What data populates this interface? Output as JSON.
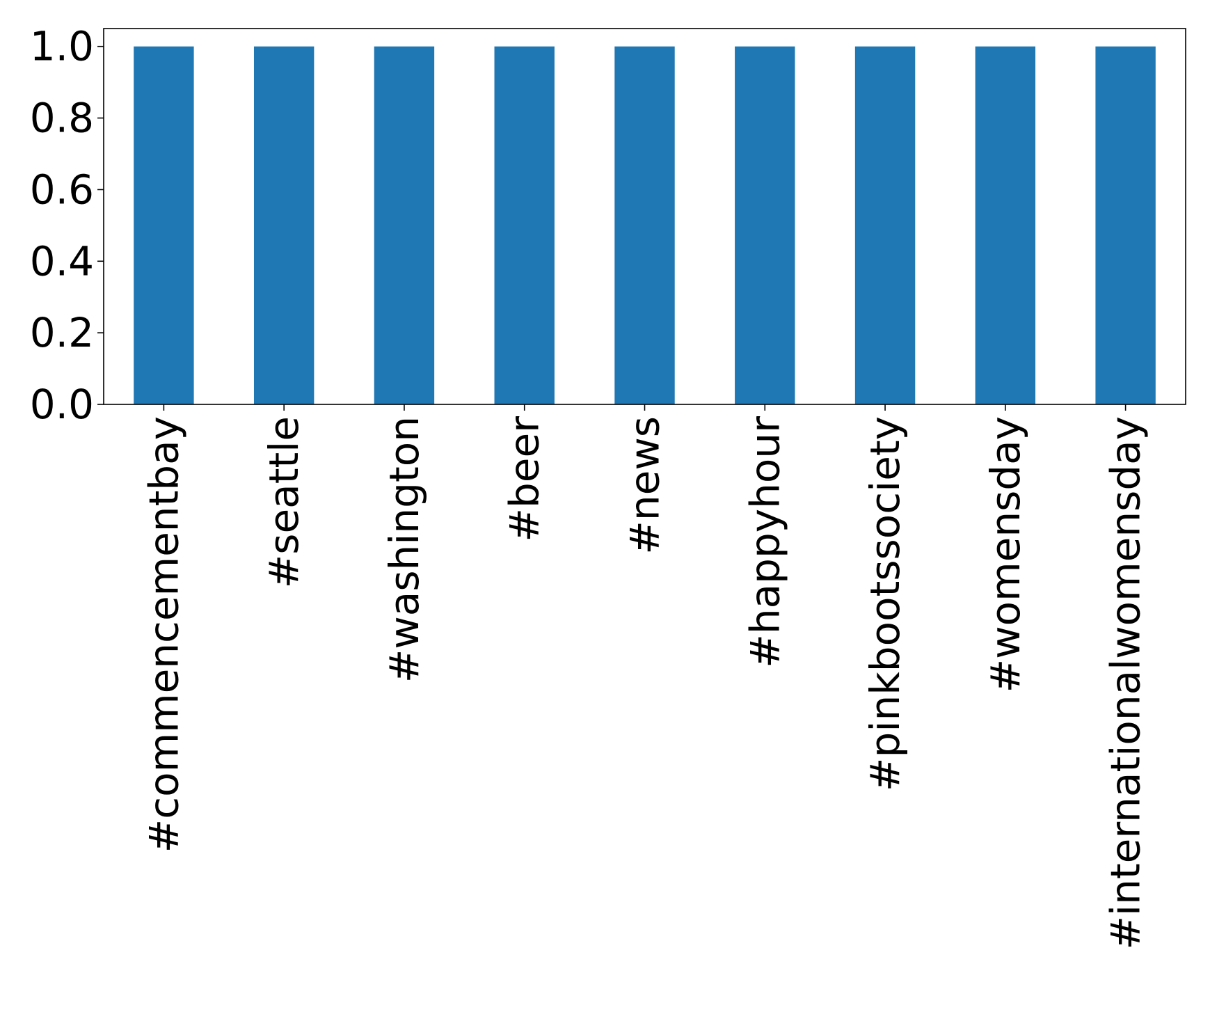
{
  "chart_data": {
    "type": "bar",
    "title": "",
    "xlabel": "",
    "ylabel": "",
    "categories": [
      "#commencementbay",
      "#seattle",
      "#washington",
      "#beer",
      "#news",
      "#happyhour",
      "#pinkbootssociety",
      "#womensday",
      "#internationalwomensday"
    ],
    "values": [
      1.0,
      1.0,
      1.0,
      1.0,
      1.0,
      1.0,
      1.0,
      1.0,
      1.0
    ],
    "ylim": [
      0,
      1.05
    ],
    "yticks": [
      "0.0",
      "0.2",
      "0.4",
      "0.6",
      "0.8",
      "1.0"
    ],
    "bar_color": "#1f77b4",
    "grid": false,
    "legend": "none"
  }
}
